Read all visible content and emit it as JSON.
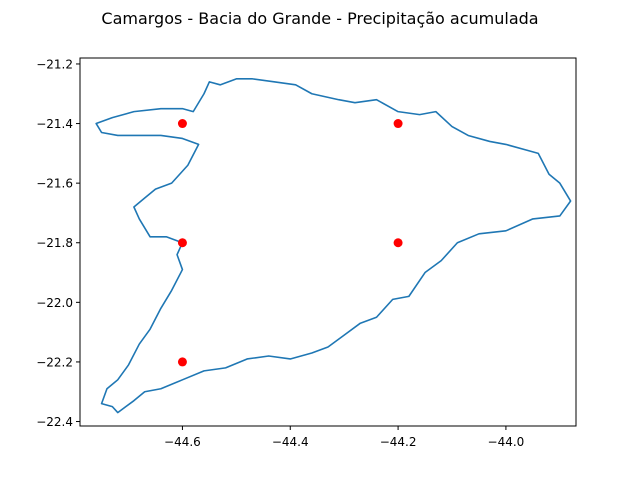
{
  "chart_data": {
    "type": "scatter",
    "title": "Camargos - Bacia do Grande - Precipitação acumulada",
    "xlabel": "",
    "ylabel": "",
    "xlim": [
      -44.79,
      -43.87
    ],
    "ylim": [
      -22.415,
      -21.18
    ],
    "grid": false,
    "x_ticks": [
      -44.6,
      -44.4,
      -44.2,
      -44.0
    ],
    "x_tick_labels": [
      "−44.6",
      "−44.4",
      "−44.2",
      "−44.0"
    ],
    "y_ticks": [
      -21.2,
      -21.4,
      -21.6,
      -21.8,
      -22.0,
      -22.2,
      -22.4
    ],
    "y_tick_labels": [
      "−21.2",
      "−21.4",
      "−21.6",
      "−21.8",
      "−22.0",
      "−22.2",
      "−22.4"
    ],
    "boundary": {
      "color": "#1f77b4",
      "lon": [
        -44.55,
        -44.53,
        -44.5,
        -44.47,
        -44.43,
        -44.39,
        -44.36,
        -44.31,
        -44.28,
        -44.24,
        -44.2,
        -44.16,
        -44.13,
        -44.1,
        -44.07,
        -44.03,
        -44.0,
        -43.96,
        -43.94,
        -43.92,
        -43.9,
        -43.88,
        -43.9,
        -43.95,
        -44.0,
        -44.05,
        -44.09,
        -44.12,
        -44.15,
        -44.18,
        -44.21,
        -44.24,
        -44.27,
        -44.3,
        -44.33,
        -44.36,
        -44.4,
        -44.44,
        -44.48,
        -44.52,
        -44.56,
        -44.6,
        -44.64,
        -44.67,
        -44.69,
        -44.72,
        -44.73,
        -44.75,
        -44.74,
        -44.72,
        -44.7,
        -44.68,
        -44.66,
        -44.64,
        -44.62,
        -44.6,
        -44.61,
        -44.6,
        -44.63,
        -44.66,
        -44.68,
        -44.69,
        -44.67,
        -44.65,
        -44.62,
        -44.59,
        -44.57,
        -44.6,
        -44.64,
        -44.68,
        -44.72,
        -44.75,
        -44.76,
        -44.73,
        -44.69,
        -44.64,
        -44.6,
        -44.58,
        -44.56,
        -44.55
      ],
      "lat": [
        -21.26,
        -21.27,
        -21.25,
        -21.25,
        -21.26,
        -21.27,
        -21.3,
        -21.32,
        -21.33,
        -21.32,
        -21.36,
        -21.37,
        -21.36,
        -21.41,
        -21.44,
        -21.46,
        -21.47,
        -21.49,
        -21.5,
        -21.57,
        -21.6,
        -21.66,
        -21.71,
        -21.72,
        -21.76,
        -21.77,
        -21.8,
        -21.86,
        -21.9,
        -21.98,
        -21.99,
        -22.05,
        -22.07,
        -22.11,
        -22.15,
        -22.17,
        -22.19,
        -22.18,
        -22.19,
        -22.22,
        -22.23,
        -22.26,
        -22.29,
        -22.3,
        -22.33,
        -22.37,
        -22.35,
        -22.34,
        -22.29,
        -22.26,
        -22.21,
        -22.14,
        -22.09,
        -22.02,
        -21.96,
        -21.89,
        -21.84,
        -21.8,
        -21.78,
        -21.78,
        -21.72,
        -21.68,
        -21.65,
        -21.62,
        -21.6,
        -21.54,
        -21.47,
        -21.45,
        -21.44,
        -21.44,
        -21.44,
        -21.43,
        -21.4,
        -21.38,
        -21.36,
        -21.35,
        -21.35,
        -21.36,
        -21.3,
        -21.26
      ]
    },
    "points": {
      "color": "#ff0000",
      "x": [
        -44.6,
        -44.6,
        -44.6,
        -44.2,
        -44.2
      ],
      "y": [
        -21.4,
        -21.8,
        -22.2,
        -21.4,
        -21.8
      ]
    }
  }
}
